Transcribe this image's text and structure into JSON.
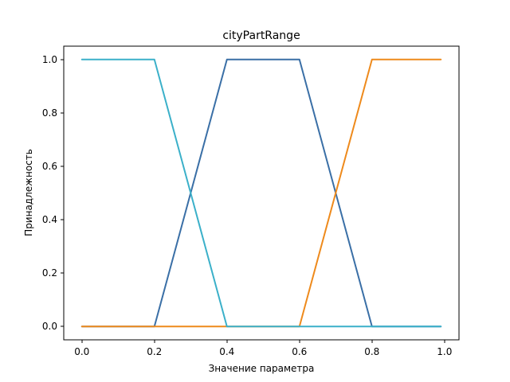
{
  "chart_data": {
    "type": "line",
    "title": "cityPartRange",
    "xlabel": "Значение параметра",
    "ylabel": "Принадлежность",
    "xlim": [
      -0.05,
      1.04
    ],
    "ylim": [
      -0.05,
      1.05
    ],
    "xticks": [
      0.0,
      0.2,
      0.4,
      0.6,
      0.8,
      1.0
    ],
    "yticks": [
      0.0,
      0.2,
      0.4,
      0.6,
      0.8,
      1.0
    ],
    "xtick_labels": [
      "0.0",
      "0.2",
      "0.4",
      "0.6",
      "0.8",
      "1.0"
    ],
    "ytick_labels": [
      "0.0",
      "0.2",
      "0.4",
      "0.6",
      "0.8",
      "1.0"
    ],
    "grid": false,
    "legend": "none",
    "series": [
      {
        "color": "#3a6fa6",
        "x": [
          0.0,
          0.2,
          0.4,
          0.6,
          0.8,
          0.99
        ],
        "y": [
          0.0,
          0.0,
          1.0,
          1.0,
          0.0,
          0.0
        ]
      },
      {
        "color": "#ee8a1c",
        "x": [
          0.0,
          0.6,
          0.8,
          0.99
        ],
        "y": [
          0.0,
          0.0,
          1.0,
          1.0
        ]
      },
      {
        "color": "#3bb0c9",
        "x": [
          0.0,
          0.2,
          0.4,
          0.99
        ],
        "y": [
          1.0,
          1.0,
          0.0,
          0.0
        ]
      }
    ]
  }
}
